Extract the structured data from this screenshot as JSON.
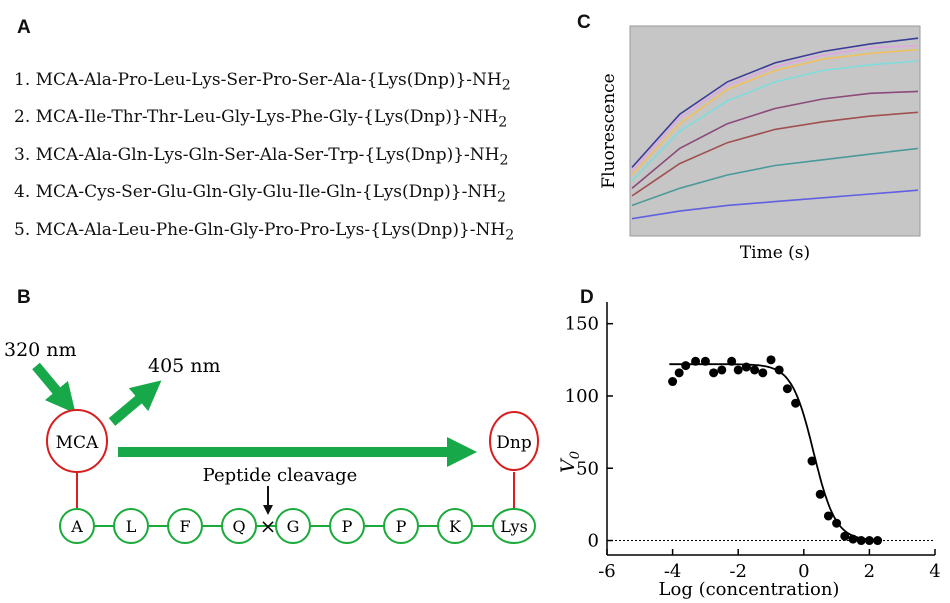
{
  "panels": {
    "a": "A",
    "b": "B",
    "c": "C",
    "d": "D"
  },
  "sequences": [
    {
      "num": "1.",
      "seq": "MCA-Ala-Pro-Leu-Lys-Ser-Pro-Ser-Ala-{Lys(Dnp)}-NH",
      "sub": "2"
    },
    {
      "num": "2.",
      "seq": "MCA-Ile-Thr-Thr-Leu-Gly-Lys-Phe-Gly-{Lys(Dnp)}-NH",
      "sub": "2"
    },
    {
      "num": "3.",
      "seq": "MCA-Ala-Gln-Lys-Gln-Ser-Ala-Ser-Trp-{Lys(Dnp)}-NH",
      "sub": "2"
    },
    {
      "num": "4.",
      "seq": "MCA-Cys-Ser-Glu-Gln-Gly-Glu-Ile-Gln-{Lys(Dnp)}-NH",
      "sub": "2"
    },
    {
      "num": "5.",
      "seq": "MCA-Ala-Leu-Phe-Gln-Gly-Pro-Pro-Lys-{Lys(Dnp)}-NH",
      "sub": "2"
    }
  ],
  "diagram": {
    "excitation": "320 nm",
    "emission": "405 nm",
    "fluorophore": "MCA",
    "quencher": "Dnp",
    "cleavage_label": "Peptide cleavage",
    "cleavage_mark": "×",
    "residues": [
      "A",
      "L",
      "F",
      "Q",
      "G",
      "P",
      "P",
      "K",
      "Lys"
    ],
    "colors": {
      "ring": "#d81e1e",
      "chain": "#1aab3a",
      "arrow": "#17a84a"
    }
  },
  "plot_c": {
    "xlabel": "Time (s)",
    "ylabel": "Fluorescence",
    "bg": "#c6c6c6"
  },
  "chart_data": [
    {
      "type": "line",
      "xlabel": "Time (s)",
      "ylabel": "Fluorescence",
      "series": [
        {
          "color": "#3b3b9a",
          "values": [
            0.34,
            0.62,
            0.79,
            0.89,
            0.95,
            0.99,
            1.02
          ]
        },
        {
          "color": "#e0a8e0",
          "values": [
            0.32,
            0.6,
            0.77,
            0.87,
            0.93,
            0.97,
            0.98
          ]
        },
        {
          "color": "#f0c060",
          "values": [
            0.3,
            0.57,
            0.75,
            0.85,
            0.91,
            0.94,
            0.96
          ]
        },
        {
          "color": "#7fdcdc",
          "values": [
            0.27,
            0.53,
            0.69,
            0.79,
            0.85,
            0.88,
            0.9
          ]
        },
        {
          "color": "#8a4a7a",
          "values": [
            0.23,
            0.44,
            0.57,
            0.65,
            0.7,
            0.73,
            0.74
          ]
        },
        {
          "color": "#a05050",
          "values": [
            0.19,
            0.36,
            0.47,
            0.54,
            0.58,
            0.61,
            0.63
          ]
        },
        {
          "color": "#4a9a9a",
          "values": [
            0.14,
            0.23,
            0.3,
            0.35,
            0.38,
            0.41,
            0.44
          ]
        },
        {
          "color": "#6060e0",
          "values": [
            0.07,
            0.11,
            0.14,
            0.16,
            0.18,
            0.2,
            0.22
          ]
        }
      ]
    },
    {
      "type": "scatter",
      "xlabel": "Log (concentration)",
      "ylabel": "V",
      "ylabel_sub": "0",
      "xlim": [
        -6,
        4
      ],
      "ylim": [
        -10,
        165
      ],
      "xticks": [
        -6,
        -4,
        -2,
        0,
        2,
        4
      ],
      "yticks": [
        0,
        50,
        100,
        150
      ],
      "points": [
        [
          -4.0,
          110
        ],
        [
          -3.8,
          116
        ],
        [
          -3.6,
          121
        ],
        [
          -3.3,
          124
        ],
        [
          -3.0,
          124
        ],
        [
          -2.75,
          116
        ],
        [
          -2.5,
          118
        ],
        [
          -2.2,
          124
        ],
        [
          -2.0,
          118
        ],
        [
          -1.75,
          120
        ],
        [
          -1.5,
          118
        ],
        [
          -1.25,
          116
        ],
        [
          -1.0,
          125
        ],
        [
          -0.75,
          118
        ],
        [
          -0.5,
          105
        ],
        [
          -0.25,
          95
        ],
        [
          0.25,
          55
        ],
        [
          0.5,
          32
        ],
        [
          0.75,
          17
        ],
        [
          1.0,
          12
        ],
        [
          1.25,
          3
        ],
        [
          1.5,
          1
        ],
        [
          1.75,
          0
        ],
        [
          2.0,
          0
        ],
        [
          2.25,
          0
        ]
      ],
      "fit": {
        "top": 122,
        "bottom": 0,
        "ic50": 0.3,
        "hill": 1.3
      }
    }
  ]
}
